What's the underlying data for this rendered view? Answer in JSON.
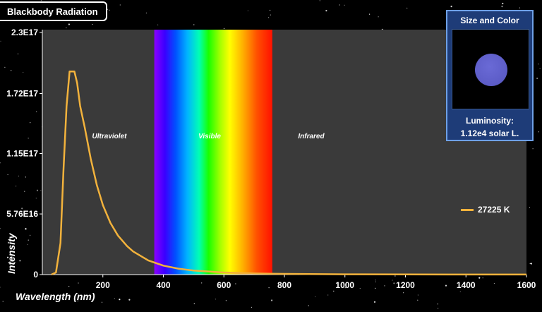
{
  "header": {
    "title": "Blackbody Radiation"
  },
  "panel": {
    "title": "Size and Color",
    "luminosity_label": "Luminosity:",
    "luminosity_value": "1.12e4 solar L."
  },
  "colors": {
    "curve": "#f2b23c",
    "plot_background": "#3a3a3a",
    "panel_background": "#1e3c78",
    "star_color": "#5f5fcc"
  },
  "chart_data": {
    "type": "line",
    "xlabel": "Wavelength (nm)",
    "ylabel": "Intensity",
    "xlim": [
      0,
      1600
    ],
    "ylim": [
      0,
      2.3e+17
    ],
    "x_ticks": [
      200,
      400,
      600,
      800,
      1000,
      1200,
      1400,
      1600
    ],
    "y_ticks": [
      {
        "value": 0,
        "label": "0"
      },
      {
        "value": 5.76e+16,
        "label": "5.76E16"
      },
      {
        "value": 1.15e+17,
        "label": "1.15E17"
      },
      {
        "value": 1.72e+17,
        "label": "1.72E17"
      },
      {
        "value": 2.3e+17,
        "label": "2.3E17"
      }
    ],
    "regions": [
      {
        "name": "Ultraviolet",
        "x_start": 0,
        "x_end": 370
      },
      {
        "name": "Visible",
        "x_start": 370,
        "x_end": 760
      },
      {
        "name": "Infrared",
        "x_start": 760,
        "x_end": 1600
      }
    ],
    "series": [
      {
        "name": "27225 K",
        "x": [
          30,
          45,
          60,
          70,
          80,
          90,
          100,
          106,
          115,
          125,
          140,
          160,
          180,
          200,
          225,
          250,
          280,
          300,
          350,
          400,
          450,
          500,
          600,
          700,
          800,
          1000,
          1200,
          1400,
          1600
        ],
        "y": [
          0,
          2000000000000000.0,
          3e+16,
          1e+17,
          1.6e+17,
          1.93e+17,
          1.93e+17,
          1.93e+17,
          1.82e+17,
          1.6e+17,
          1.4e+17,
          1.1e+17,
          8.5e+16,
          6.6e+16,
          4.9e+16,
          3.7e+16,
          2.7e+16,
          2.2e+16,
          1.35e+16,
          8500000000000000.0,
          5600000000000000.0,
          3800000000000000.0,
          2000000000000000.0,
          1100000000000000.0,
          700000000000000.0,
          300000000000000.0,
          140000000000000.0,
          80000000000000.0,
          50000000000000.0
        ]
      }
    ]
  }
}
